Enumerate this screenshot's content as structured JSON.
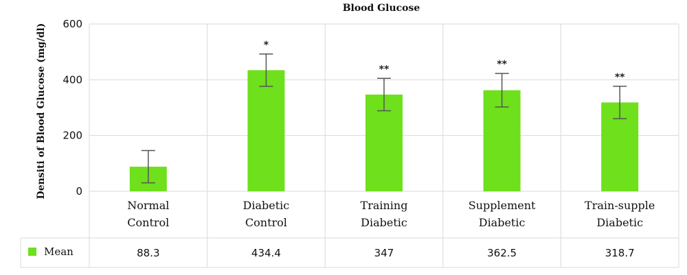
{
  "chart_data": {
    "type": "bar",
    "title": "Blood Glucose",
    "ylabel": "Densiti of Blood Glucose (mg/dl)",
    "xlabel": "",
    "ylim": [
      0,
      600
    ],
    "yticks": [
      0,
      200,
      400,
      600
    ],
    "grid": true,
    "categories": [
      [
        "Normal",
        "Control"
      ],
      [
        "Diabetic",
        "Control"
      ],
      [
        "Training",
        "Diabetic"
      ],
      [
        "Supplement",
        "Diabetic"
      ],
      [
        "Train-supple",
        "Diabetic"
      ]
    ],
    "series": [
      {
        "name": "Mean",
        "color": "#6ee01c",
        "values": [
          88.3,
          434.4,
          347,
          362.5,
          318.7
        ],
        "value_labels": [
          "88.3",
          "434.4",
          "347",
          "362.5",
          "318.7"
        ],
        "error": [
          58,
          58,
          58,
          60,
          58
        ]
      }
    ],
    "annotations": [
      "",
      "*",
      "**",
      "**",
      "**"
    ],
    "legend": "data-table-left"
  }
}
